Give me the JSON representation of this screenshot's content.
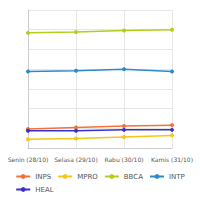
{
  "chart_data": {
    "type": "line",
    "categories": [
      "Senin (28/10)",
      "Selasa (29/10)",
      "Rabu (30/10)",
      "Kamis (31/10)"
    ],
    "series": [
      {
        "name": "INPS",
        "color": "#f2733a",
        "values": [
          0.96,
          1.04,
          1.12,
          1.16
        ]
      },
      {
        "name": "MPRO",
        "color": "#f5c518",
        "values": [
          0.44,
          0.48,
          0.56,
          0.64
        ]
      },
      {
        "name": "BBCA",
        "color": "#b5cc18",
        "values": [
          5.84,
          5.88,
          5.96,
          6.0
        ]
      },
      {
        "name": "INTP",
        "color": "#2a8bc9",
        "values": [
          3.88,
          3.92,
          4.0,
          3.88
        ]
      },
      {
        "name": "HEAL",
        "color": "#3b2fc9",
        "values": [
          0.88,
          0.88,
          0.92,
          0.92
        ]
      }
    ],
    "ylim": [
      0,
      7
    ],
    "yticks": [
      0,
      1,
      2,
      3,
      4,
      5,
      6,
      7
    ],
    "grid": true,
    "legend": "bottom",
    "tick_labels": "x",
    "marker": "circle"
  }
}
